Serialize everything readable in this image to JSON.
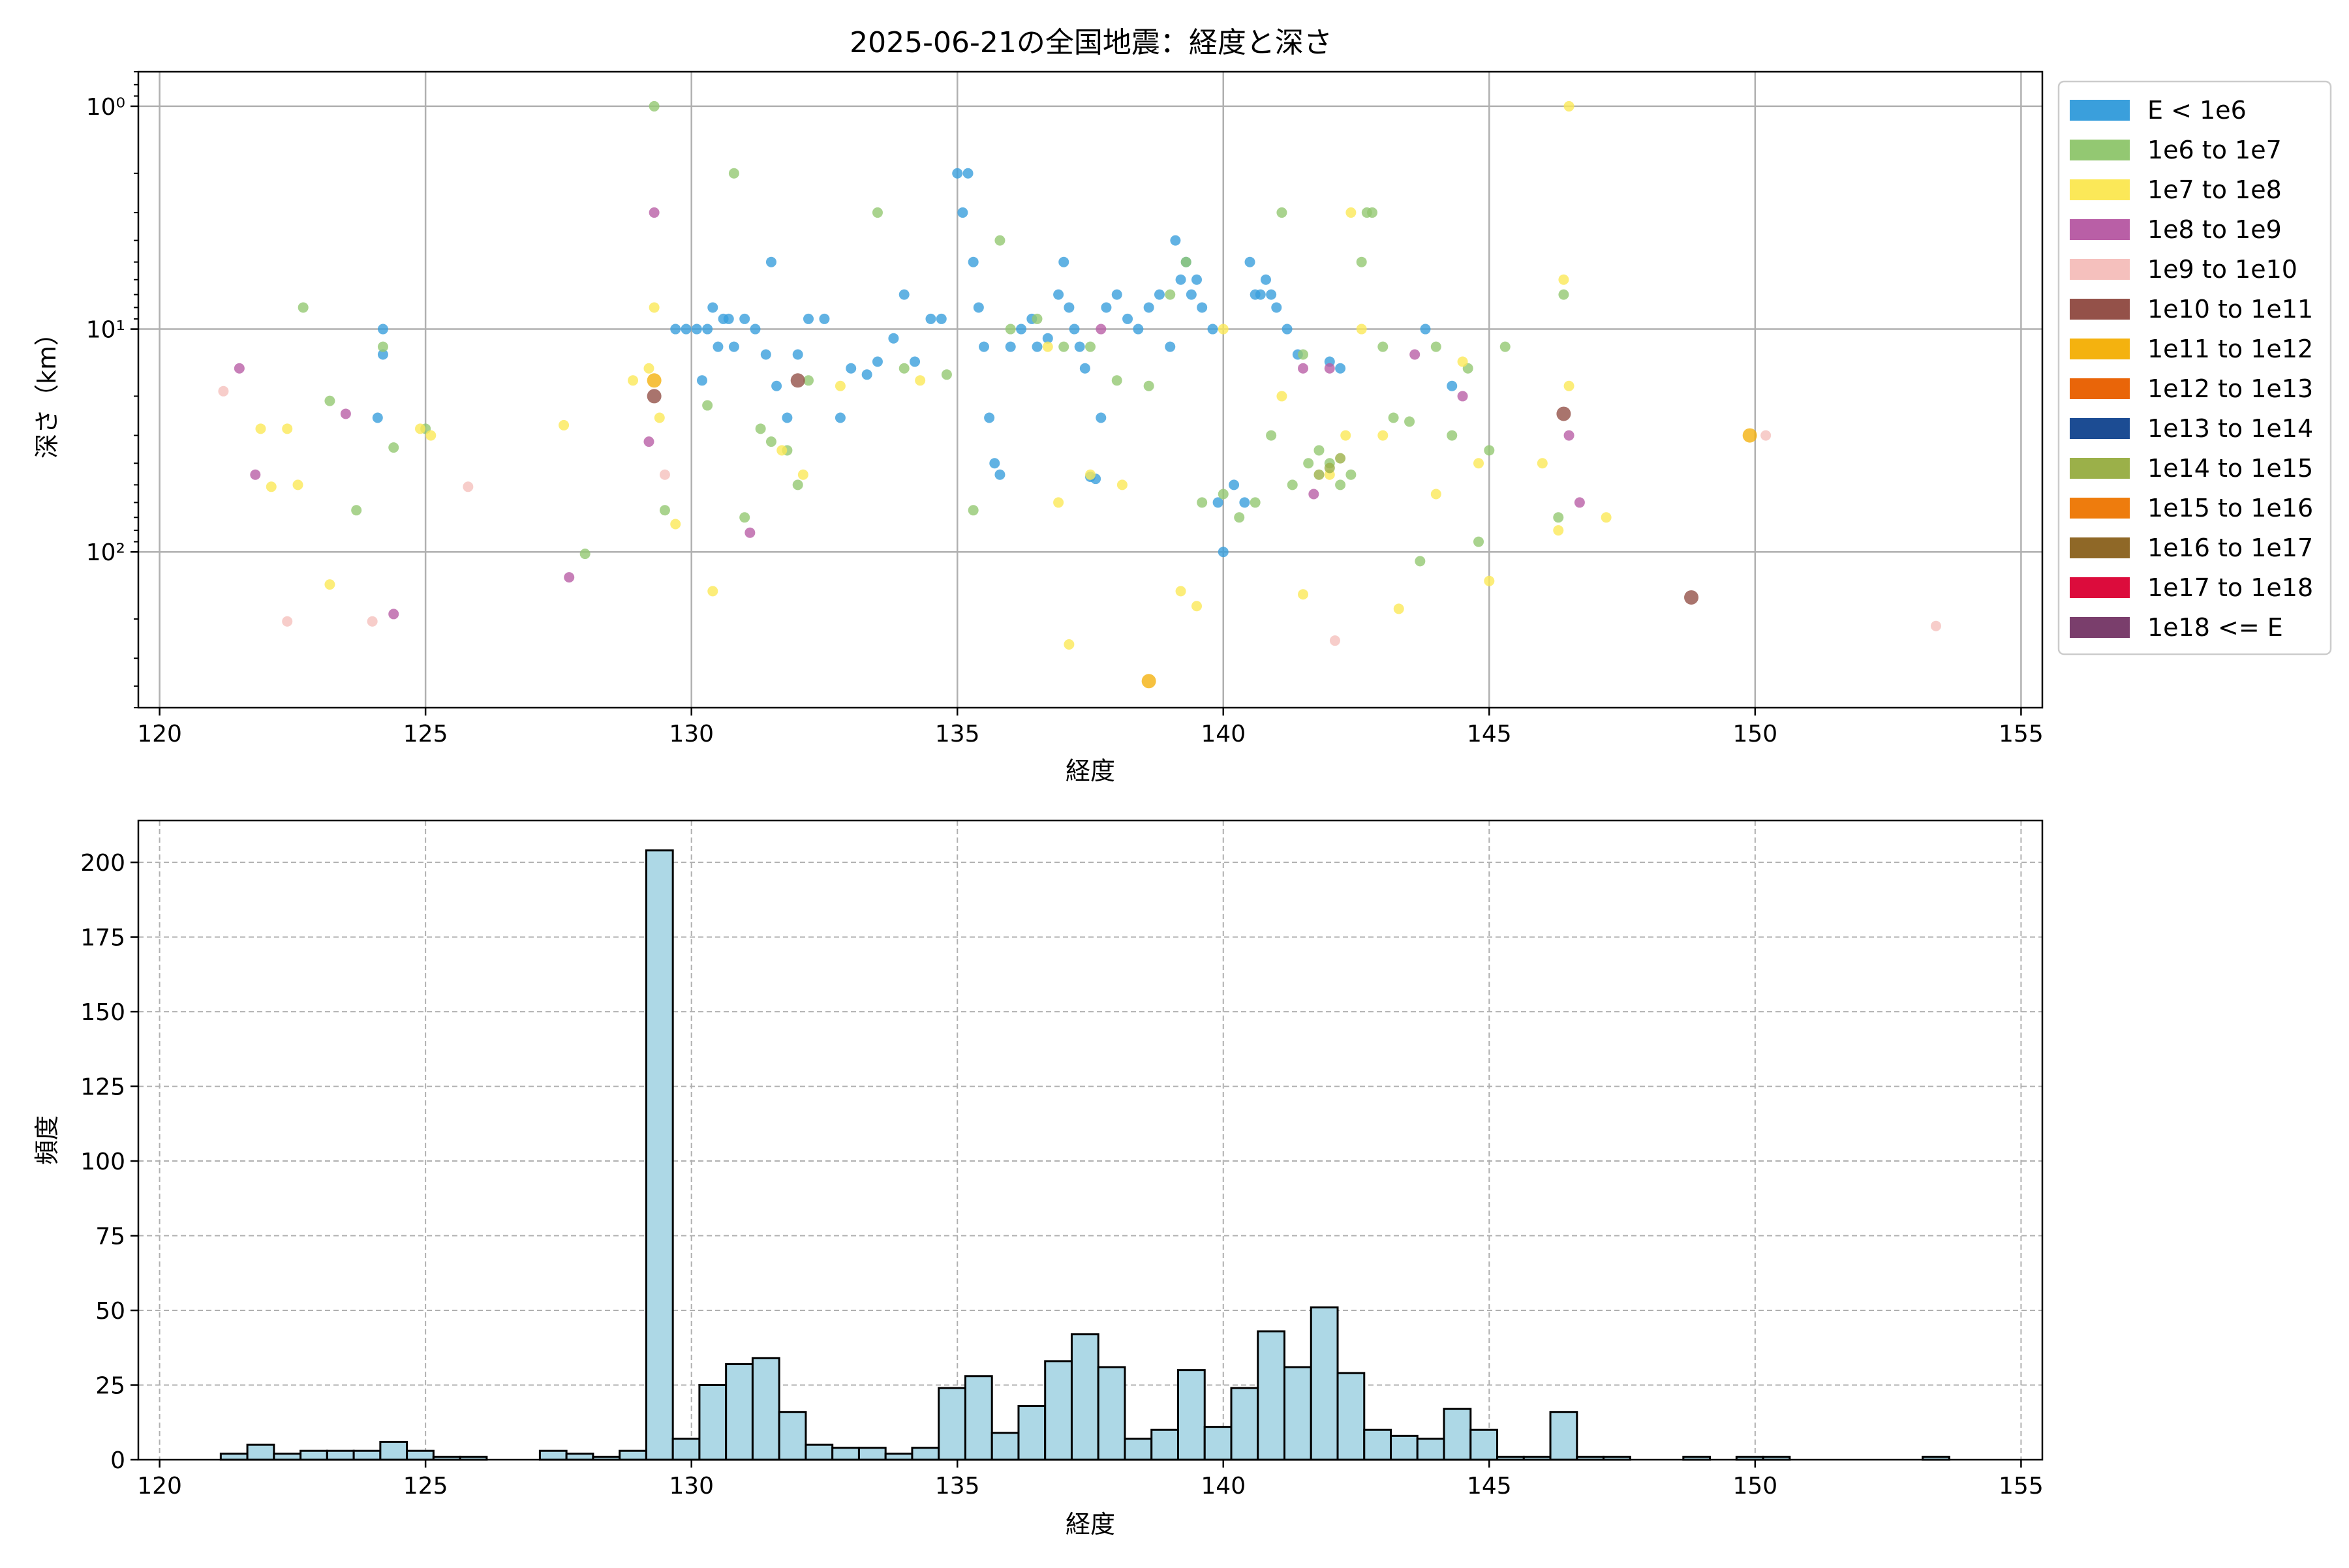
{
  "title": "2025-06-21の全国地震：経度と深さ",
  "colors": {
    "hist_fill": "#add8e6",
    "grid": "#b0b0b0"
  },
  "legend": {
    "placement": "right-outside-top",
    "entries": [
      {
        "label": "E < 1e6",
        "color": "#3a9fdc"
      },
      {
        "label": "1e6 to 1e7",
        "color": "#93c872"
      },
      {
        "label": "1e7 to 1e8",
        "color": "#fbe858"
      },
      {
        "label": "1e8 to 1e9",
        "color": "#b95fa6"
      },
      {
        "label": "1e9 to 1e10",
        "color": "#f5c0bd"
      },
      {
        "label": "1e10 to 1e11",
        "color": "#945149"
      },
      {
        "label": "1e11 to 1e12",
        "color": "#f4b20f"
      },
      {
        "label": "1e12 to 1e13",
        "color": "#e96509"
      },
      {
        "label": "1e13 to 1e14",
        "color": "#1c4c93"
      },
      {
        "label": "1e14 to 1e15",
        "color": "#9bb049"
      },
      {
        "label": "1e15 to 1e16",
        "color": "#ee7c0d"
      },
      {
        "label": "1e16 to 1e17",
        "color": "#8f6827"
      },
      {
        "label": "1e17 to 1e18",
        "color": "#dc0c3c"
      },
      {
        "label": "1e18 <= E",
        "color": "#7a3e6c"
      }
    ]
  },
  "chart_data": [
    {
      "type": "scatter",
      "title": "2025-06-21の全国地震：経度と深さ",
      "xlabel": "経度",
      "ylabel": "深さ（km）",
      "xlim": [
        119.6,
        155.4
      ],
      "ylim": [
        500,
        0.7
      ],
      "yscale": "log",
      "y_inverted": true,
      "grid": true,
      "xticks": [
        120,
        125,
        130,
        135,
        140,
        145,
        150,
        155
      ],
      "xtick_labels": [
        "120",
        "125",
        "130",
        "135",
        "140",
        "145",
        "150",
        "155"
      ],
      "yticks": [
        1,
        10,
        100
      ],
      "ytick_labels": [
        "10⁰",
        "10¹",
        "10²"
      ],
      "series": [
        {
          "name": "E < 1e6",
          "points": [
            [
              124.2,
              10
            ],
            [
              124.2,
              13
            ],
            [
              124.1,
              25
            ],
            [
              129.7,
              10
            ],
            [
              129.9,
              10
            ],
            [
              130.1,
              10
            ],
            [
              130.2,
              17
            ],
            [
              130.3,
              10
            ],
            [
              130.4,
              8
            ],
            [
              130.5,
              12
            ],
            [
              130.6,
              9
            ],
            [
              130.7,
              9
            ],
            [
              130.8,
              12
            ],
            [
              131.0,
              9
            ],
            [
              131.2,
              10
            ],
            [
              131.4,
              13
            ],
            [
              131.5,
              5
            ],
            [
              131.6,
              18
            ],
            [
              131.8,
              25
            ],
            [
              132.0,
              13
            ],
            [
              132.2,
              9
            ],
            [
              132.5,
              9
            ],
            [
              132.8,
              25
            ],
            [
              133.0,
              15
            ],
            [
              133.3,
              16
            ],
            [
              133.5,
              14
            ],
            [
              133.8,
              11
            ],
            [
              134.0,
              7
            ],
            [
              134.2,
              14
            ],
            [
              134.5,
              9
            ],
            [
              134.7,
              9
            ],
            [
              135.0,
              2
            ],
            [
              135.1,
              3
            ],
            [
              135.2,
              2
            ],
            [
              135.3,
              5
            ],
            [
              135.4,
              8
            ],
            [
              135.5,
              12
            ],
            [
              135.6,
              25
            ],
            [
              135.7,
              40
            ],
            [
              135.8,
              45
            ],
            [
              136.0,
              12
            ],
            [
              136.2,
              10
            ],
            [
              136.4,
              9
            ],
            [
              136.5,
              12
            ],
            [
              136.7,
              11
            ],
            [
              136.9,
              7
            ],
            [
              137.0,
              5
            ],
            [
              137.1,
              8
            ],
            [
              137.2,
              10
            ],
            [
              137.3,
              12
            ],
            [
              137.4,
              15
            ],
            [
              137.5,
              46
            ],
            [
              137.6,
              47
            ],
            [
              137.7,
              25
            ],
            [
              137.8,
              8
            ],
            [
              138.0,
              7
            ],
            [
              138.2,
              9
            ],
            [
              138.4,
              10
            ],
            [
              138.6,
              8
            ],
            [
              138.8,
              7
            ],
            [
              139.0,
              12
            ],
            [
              139.1,
              4
            ],
            [
              139.2,
              6
            ],
            [
              139.3,
              5
            ],
            [
              139.4,
              7
            ],
            [
              139.5,
              6
            ],
            [
              139.6,
              8
            ],
            [
              139.8,
              10
            ],
            [
              139.9,
              60
            ],
            [
              140.0,
              100
            ],
            [
              140.2,
              50
            ],
            [
              140.4,
              60
            ],
            [
              140.5,
              5
            ],
            [
              140.6,
              7
            ],
            [
              140.7,
              7
            ],
            [
              140.8,
              6
            ],
            [
              140.9,
              7
            ],
            [
              141.0,
              8
            ],
            [
              141.2,
              10
            ],
            [
              141.4,
              13
            ],
            [
              142.0,
              14
            ],
            [
              142.2,
              15
            ],
            [
              143.8,
              10
            ],
            [
              144.3,
              18
            ]
          ]
        },
        {
          "name": "1e6 to 1e7",
          "points": [
            [
              122.7,
              8
            ],
            [
              123.2,
              21
            ],
            [
              123.7,
              65
            ],
            [
              124.2,
              12
            ],
            [
              124.4,
              34
            ],
            [
              125.0,
              28
            ],
            [
              128.0,
              102
            ],
            [
              129.3,
              1
            ],
            [
              129.5,
              65
            ],
            [
              130.3,
              22
            ],
            [
              130.8,
              2
            ],
            [
              131.0,
              70
            ],
            [
              131.3,
              28
            ],
            [
              131.5,
              32
            ],
            [
              131.8,
              35
            ],
            [
              132.0,
              50
            ],
            [
              132.2,
              17
            ],
            [
              133.5,
              3
            ],
            [
              134.0,
              15
            ],
            [
              134.8,
              16
            ],
            [
              135.3,
              65
            ],
            [
              135.8,
              4
            ],
            [
              136.0,
              10
            ],
            [
              136.5,
              9
            ],
            [
              137.0,
              12
            ],
            [
              137.5,
              12
            ],
            [
              138.0,
              17
            ],
            [
              138.6,
              18
            ],
            [
              139.0,
              7
            ],
            [
              139.3,
              5
            ],
            [
              139.6,
              60
            ],
            [
              140.0,
              55
            ],
            [
              140.3,
              70
            ],
            [
              140.6,
              60
            ],
            [
              140.9,
              30
            ],
            [
              141.1,
              3
            ],
            [
              141.3,
              50
            ],
            [
              141.5,
              13
            ],
            [
              141.6,
              40
            ],
            [
              141.8,
              35
            ],
            [
              142.0,
              40
            ],
            [
              142.2,
              50
            ],
            [
              142.4,
              45
            ],
            [
              142.6,
              5
            ],
            [
              142.7,
              3
            ],
            [
              142.8,
              3
            ],
            [
              143.0,
              12
            ],
            [
              143.2,
              25
            ],
            [
              143.5,
              26
            ],
            [
              143.7,
              110
            ],
            [
              144.0,
              12
            ],
            [
              144.3,
              30
            ],
            [
              144.6,
              15
            ],
            [
              144.8,
              90
            ],
            [
              145.0,
              35
            ],
            [
              145.3,
              12
            ],
            [
              146.3,
              70
            ],
            [
              146.4,
              7
            ]
          ]
        },
        {
          "name": "1e7 to 1e8",
          "points": [
            [
              121.9,
              28
            ],
            [
              122.1,
              51
            ],
            [
              122.4,
              28
            ],
            [
              122.6,
              50
            ],
            [
              123.2,
              140
            ],
            [
              124.9,
              28
            ],
            [
              125.1,
              30
            ],
            [
              127.6,
              27
            ],
            [
              128.9,
              17
            ],
            [
              129.2,
              15
            ],
            [
              129.3,
              8
            ],
            [
              129.4,
              25
            ],
            [
              129.7,
              75
            ],
            [
              130.4,
              150
            ],
            [
              131.7,
              35
            ],
            [
              132.1,
              45
            ],
            [
              132.8,
              18
            ],
            [
              134.3,
              17
            ],
            [
              136.7,
              12
            ],
            [
              136.9,
              60
            ],
            [
              137.1,
              260
            ],
            [
              137.5,
              45
            ],
            [
              138.1,
              50
            ],
            [
              139.2,
              150
            ],
            [
              139.5,
              175
            ],
            [
              140.0,
              10
            ],
            [
              141.1,
              20
            ],
            [
              141.5,
              155
            ],
            [
              142.0,
              45
            ],
            [
              142.3,
              30
            ],
            [
              142.4,
              3
            ],
            [
              142.6,
              10
            ],
            [
              143.0,
              30
            ],
            [
              143.3,
              180
            ],
            [
              144.0,
              55
            ],
            [
              144.5,
              14
            ],
            [
              144.8,
              40
            ],
            [
              145.0,
              135
            ],
            [
              146.0,
              40
            ],
            [
              146.3,
              80
            ],
            [
              146.4,
              6
            ],
            [
              146.5,
              18
            ],
            [
              146.5,
              1
            ],
            [
              147.2,
              70
            ]
          ]
        },
        {
          "name": "1e8 to 1e9",
          "points": [
            [
              121.5,
              15
            ],
            [
              121.8,
              45
            ],
            [
              123.5,
              24
            ],
            [
              124.4,
              190
            ],
            [
              127.7,
              130
            ],
            [
              129.2,
              32
            ],
            [
              129.3,
              3
            ],
            [
              131.1,
              82
            ],
            [
              137.7,
              10
            ],
            [
              141.5,
              15
            ],
            [
              141.7,
              55
            ],
            [
              142.0,
              15
            ],
            [
              143.6,
              13
            ],
            [
              144.5,
              20
            ],
            [
              146.5,
              30
            ],
            [
              146.7,
              60
            ]
          ]
        },
        {
          "name": "1e9 to 1e10",
          "points": [
            [
              121.2,
              19
            ],
            [
              122.4,
              205
            ],
            [
              124.0,
              205
            ],
            [
              125.8,
              51
            ],
            [
              129.5,
              45
            ],
            [
              142.1,
              250
            ],
            [
              150.2,
              30
            ],
            [
              153.4,
              215
            ]
          ]
        },
        {
          "name": "1e10 to 1e11",
          "points": [
            [
              129.3,
              20
            ],
            [
              132.0,
              17
            ],
            [
              146.4,
              24
            ],
            [
              148.8,
              160
            ]
          ]
        },
        {
          "name": "1e11 to 1e12",
          "points": [
            [
              129.3,
              17
            ],
            [
              138.6,
              380
            ],
            [
              149.9,
              30
            ]
          ]
        },
        {
          "name": "1e14 to 1e15",
          "points": [
            [
              141.8,
              45
            ],
            [
              142.0,
              42
            ],
            [
              142.2,
              38
            ]
          ]
        }
      ]
    },
    {
      "type": "bar",
      "subtype": "histogram",
      "xlabel": "経度",
      "ylabel": "頻度",
      "xlim": [
        119.6,
        155.4
      ],
      "ylim": [
        0,
        214
      ],
      "grid": true,
      "bin_width": 0.5,
      "xticks": [
        120,
        125,
        130,
        135,
        140,
        145,
        150,
        155
      ],
      "xtick_labels": [
        "120",
        "125",
        "130",
        "135",
        "140",
        "145",
        "150",
        "155"
      ],
      "yticks": [
        0,
        25,
        50,
        75,
        100,
        125,
        150,
        175,
        200
      ],
      "ytick_labels": [
        "0",
        "25",
        "50",
        "75",
        "100",
        "125",
        "150",
        "175",
        "200"
      ],
      "bin_starts": [
        121.15,
        121.65,
        122.15,
        122.65,
        123.15,
        123.65,
        124.15,
        124.65,
        125.15,
        125.65,
        127.15,
        127.65,
        128.15,
        128.65,
        129.15,
        129.65,
        130.15,
        130.65,
        131.15,
        131.65,
        132.15,
        132.65,
        133.15,
        133.65,
        134.15,
        134.65,
        135.15,
        135.65,
        136.15,
        136.65,
        137.15,
        137.65,
        138.15,
        138.65,
        139.15,
        139.65,
        140.15,
        140.65,
        141.15,
        141.65,
        142.15,
        142.65,
        143.15,
        143.65,
        144.15,
        144.65,
        145.15,
        145.65,
        146.15,
        146.65,
        147.15,
        148.65,
        149.65,
        150.15,
        153.15
      ],
      "values": [
        2,
        5,
        2,
        3,
        3,
        3,
        6,
        3,
        1,
        1,
        3,
        2,
        1,
        3,
        204,
        7,
        25,
        32,
        34,
        16,
        5,
        4,
        4,
        2,
        4,
        24,
        28,
        9,
        18,
        33,
        42,
        31,
        7,
        10,
        30,
        11,
        24,
        43,
        31,
        51,
        29,
        10,
        8,
        7,
        17,
        10,
        1,
        1,
        16,
        1,
        1,
        1,
        1,
        1,
        1
      ]
    }
  ]
}
